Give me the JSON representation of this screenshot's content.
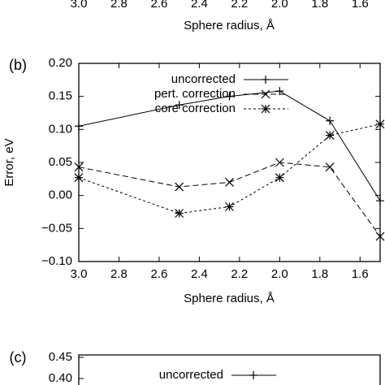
{
  "chart_data": [
    {
      "type": "line",
      "xlabel": "Sphere radius, Å",
      "xlim": [
        3.0,
        1.5
      ],
      "xticks": [
        {
          "value": 3.0,
          "label": "3.0"
        },
        2.8,
        2.6,
        2.4,
        2.2,
        {
          "value": 2.0,
          "label": "2.0"
        },
        1.8,
        1.6
      ]
    },
    {
      "type": "line",
      "panel": "(b)",
      "xlabel": "Sphere radius, Å",
      "ylabel": "Error, eV",
      "xlim": [
        3.0,
        1.5
      ],
      "ylim": [
        -0.1,
        0.2
      ],
      "xticks": [
        {
          "value": 3.0,
          "label": "3.0"
        },
        2.8,
        2.6,
        2.4,
        2.2,
        {
          "value": 2.0,
          "label": "2.0"
        },
        1.8,
        1.6
      ],
      "yticks": [
        {
          "value": -0.1,
          "label": "−0.10"
        },
        {
          "value": -0.05,
          "label": "−0.05"
        },
        {
          "value": 0,
          "label": "0.00"
        },
        0.05,
        {
          "value": 0.1,
          "label": "0.10"
        },
        0.15,
        {
          "value": 0.2,
          "label": "0.20"
        }
      ],
      "x": [
        3.0,
        2.5,
        2.25,
        2.0,
        1.75,
        1.5
      ],
      "series": [
        {
          "name": "uncorrected",
          "color": "#000000",
          "marker": "plus",
          "dash": "solid",
          "values": [
            0.105,
            0.137,
            0.15,
            0.158,
            0.113,
            -0.008
          ]
        },
        {
          "name": "pert. correction",
          "color": "#000000",
          "marker": "x",
          "dash": "long",
          "values": [
            0.043,
            0.013,
            0.02,
            0.05,
            0.043,
            -0.062
          ]
        },
        {
          "name": "core correction",
          "color": "#000000",
          "marker": "star",
          "dash": "short",
          "values": [
            0.027,
            -0.027,
            -0.017,
            0.027,
            0.091,
            0.108
          ]
        }
      ]
    },
    {
      "type": "line",
      "panel": "(c)",
      "xlim": [
        3.0,
        1.5
      ],
      "yticks": [
        {
          "value": 0.45,
          "label": "0.45"
        },
        {
          "value": 0.4,
          "label": "0.40"
        }
      ],
      "series": [
        {
          "name": "uncorrected",
          "color": "#000000",
          "marker": "plus",
          "dash": "solid"
        }
      ]
    }
  ]
}
